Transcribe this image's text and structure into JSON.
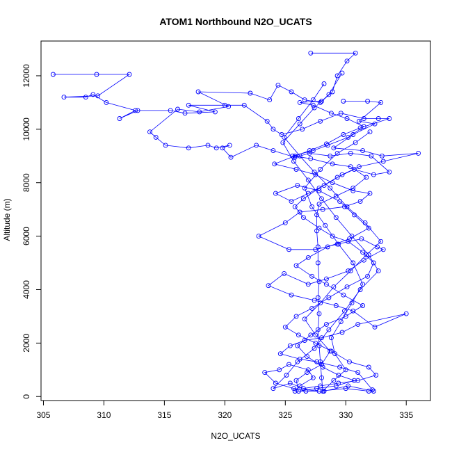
{
  "chart_data": {
    "type": "line",
    "title": "ATOM1 Northbound N2O_UCATS",
    "xlabel": "N2O_UCATS",
    "ylabel": "Altitude (m)",
    "xlim": [
      304.8,
      337.0
    ],
    "ylim": [
      -150,
      13300
    ],
    "xticks": [
      305,
      310,
      315,
      320,
      325,
      330,
      335
    ],
    "yticks": [
      0,
      2000,
      4000,
      6000,
      8000,
      10000,
      12000
    ],
    "marker": "open-circle",
    "grid": false,
    "legend": "none",
    "series": [
      {
        "color": "#0000ff",
        "points": [
          [
            305.8,
            12050
          ],
          [
            309.4,
            12050
          ],
          [
            312.1,
            12050
          ],
          [
            309.5,
            11250
          ],
          [
            306.7,
            11200
          ],
          [
            308.5,
            11200
          ],
          [
            309.1,
            11300
          ],
          [
            310.2,
            11000
          ],
          [
            312.6,
            10700
          ],
          [
            311.3,
            10400
          ],
          [
            312.8,
            10700
          ],
          [
            315.5,
            10700
          ],
          [
            316.7,
            10600
          ],
          [
            319.2,
            10650
          ],
          [
            317.0,
            10900
          ],
          [
            320.0,
            10900
          ],
          [
            321.6,
            10900
          ],
          [
            323.5,
            10300
          ],
          [
            324.0,
            10000
          ],
          [
            324.7,
            9800
          ],
          [
            326.4,
            10000
          ],
          [
            327.9,
            10300
          ],
          [
            329.6,
            10600
          ],
          [
            331.5,
            10400
          ],
          [
            332.7,
            10400
          ],
          [
            333.6,
            10400
          ],
          [
            331.2,
            10050
          ],
          [
            329.8,
            9800
          ],
          [
            328.4,
            9450
          ],
          [
            327.0,
            9200
          ],
          [
            325.8,
            9000
          ],
          [
            324.1,
            8700
          ],
          [
            325.9,
            8500
          ],
          [
            327.5,
            8300
          ],
          [
            328.9,
            8000
          ],
          [
            330.6,
            7700
          ],
          [
            332.0,
            7600
          ],
          [
            331.2,
            7300
          ],
          [
            329.9,
            7100
          ],
          [
            328.1,
            7000
          ],
          [
            326.2,
            6900
          ],
          [
            325.0,
            6500
          ],
          [
            322.8,
            6000
          ],
          [
            325.3,
            5500
          ],
          [
            327.5,
            5500
          ],
          [
            329.3,
            5700
          ],
          [
            331.3,
            5900
          ],
          [
            332.6,
            5600
          ],
          [
            333.1,
            5500
          ],
          [
            331.5,
            5100
          ],
          [
            330.2,
            4700
          ],
          [
            328.4,
            4400
          ],
          [
            326.9,
            4200
          ],
          [
            324.9,
            4600
          ],
          [
            323.6,
            4150
          ],
          [
            325.5,
            3800
          ],
          [
            327.4,
            3600
          ],
          [
            329.2,
            3400
          ],
          [
            330.6,
            3200
          ],
          [
            332.4,
            2600
          ],
          [
            335.0,
            3100
          ],
          [
            331.0,
            2700
          ],
          [
            329.7,
            2400
          ],
          [
            328.0,
            2200
          ],
          [
            326.6,
            2100
          ],
          [
            325.4,
            1900
          ],
          [
            324.6,
            1600
          ],
          [
            326.2,
            1400
          ],
          [
            327.6,
            1300
          ],
          [
            329.5,
            1100
          ],
          [
            331.0,
            900
          ],
          [
            332.3,
            200
          ],
          [
            330.2,
            400
          ],
          [
            328.2,
            200
          ],
          [
            326.7,
            200
          ],
          [
            325.8,
            200
          ],
          [
            326.2,
            400
          ],
          [
            327.3,
            700
          ],
          [
            326.9,
            1000
          ],
          [
            325.3,
            1200
          ],
          [
            324.5,
            1000
          ],
          [
            323.3,
            900
          ],
          [
            324.2,
            500
          ],
          [
            325.7,
            300
          ],
          [
            327.8,
            200
          ],
          [
            330.0,
            300
          ],
          [
            331.9,
            200
          ],
          [
            332.2,
            250
          ]
        ]
      },
      {
        "color": "#0000ff",
        "points": [
          [
            327.1,
            12850
          ],
          [
            330.8,
            12850
          ],
          [
            330.1,
            12550
          ],
          [
            329.3,
            12000
          ],
          [
            328.9,
            11400
          ],
          [
            327.9,
            11000
          ],
          [
            326.6,
            11100
          ],
          [
            325.5,
            11400
          ],
          [
            324.4,
            11650
          ],
          [
            323.7,
            11100
          ],
          [
            322.1,
            11350
          ],
          [
            317.8,
            11400
          ],
          [
            320.3,
            10850
          ],
          [
            317.9,
            10650
          ],
          [
            316.1,
            10750
          ],
          [
            313.8,
            9900
          ],
          [
            314.3,
            9700
          ],
          [
            315.1,
            9400
          ],
          [
            317.0,
            9300
          ],
          [
            318.6,
            9400
          ],
          [
            319.3,
            9300
          ],
          [
            320.4,
            9400
          ],
          [
            319.8,
            9300
          ],
          [
            320.5,
            8950
          ],
          [
            322.6,
            9400
          ],
          [
            324.0,
            9200
          ],
          [
            325.8,
            8950
          ],
          [
            327.0,
            9100
          ],
          [
            328.7,
            9000
          ],
          [
            330.4,
            9100
          ],
          [
            332.1,
            9000
          ],
          [
            333.6,
            8400
          ],
          [
            332.3,
            8300
          ],
          [
            330.7,
            8500
          ],
          [
            329.3,
            8200
          ],
          [
            327.8,
            7800
          ],
          [
            326.5,
            7400
          ],
          [
            325.8,
            7100
          ],
          [
            326.5,
            6700
          ],
          [
            327.8,
            6300
          ],
          [
            328.9,
            6000
          ],
          [
            330.2,
            5800
          ],
          [
            331.4,
            5400
          ],
          [
            332.3,
            5000
          ],
          [
            331.8,
            4500
          ],
          [
            330.1,
            4100
          ],
          [
            328.6,
            3700
          ],
          [
            327.2,
            3300
          ],
          [
            325.9,
            3000
          ],
          [
            325.0,
            2600
          ],
          [
            326.1,
            2300
          ],
          [
            327.5,
            2000
          ],
          [
            328.8,
            1700
          ],
          [
            330.3,
            1300
          ],
          [
            331.9,
            1100
          ],
          [
            332.5,
            800
          ],
          [
            331.0,
            600
          ],
          [
            329.4,
            500
          ],
          [
            327.9,
            400
          ],
          [
            326.5,
            300
          ],
          [
            325.4,
            500
          ],
          [
            324.0,
            300
          ],
          [
            325.1,
            800
          ],
          [
            326.0,
            1300
          ],
          [
            327.4,
            1800
          ],
          [
            328.6,
            2500
          ],
          [
            329.9,
            3200
          ],
          [
            331.2,
            4000
          ],
          [
            332.7,
            4700
          ],
          [
            331.9,
            5300
          ],
          [
            330.5,
            6000
          ],
          [
            329.2,
            6700
          ],
          [
            328.0,
            7400
          ],
          [
            326.9,
            8100
          ],
          [
            325.7,
            8800
          ],
          [
            324.8,
            9500
          ],
          [
            326.2,
            10200
          ],
          [
            327.4,
            10800
          ],
          [
            328.6,
            11300
          ],
          [
            329.7,
            12100
          ]
        ]
      },
      {
        "color": "#0000ff",
        "points": [
          [
            329.8,
            11050
          ],
          [
            331.8,
            11050
          ],
          [
            332.9,
            11000
          ],
          [
            331.1,
            10300
          ],
          [
            332.4,
            10200
          ],
          [
            330.6,
            9800
          ],
          [
            329.0,
            9300
          ],
          [
            331.4,
            9200
          ],
          [
            333.0,
            9000
          ],
          [
            336.0,
            9100
          ],
          [
            333.1,
            8800
          ],
          [
            331.1,
            8600
          ],
          [
            329.7,
            8300
          ],
          [
            328.2,
            7900
          ],
          [
            326.9,
            7600
          ],
          [
            325.5,
            7300
          ],
          [
            324.2,
            7600
          ],
          [
            326.0,
            7900
          ],
          [
            327.8,
            7700
          ],
          [
            329.5,
            7300
          ],
          [
            330.7,
            6800
          ],
          [
            331.9,
            6300
          ],
          [
            330.3,
            5900
          ],
          [
            328.5,
            5600
          ],
          [
            326.9,
            5200
          ],
          [
            325.9,
            4900
          ],
          [
            327.2,
            4500
          ],
          [
            328.4,
            4200
          ],
          [
            329.8,
            3800
          ],
          [
            331.4,
            3400
          ],
          [
            330.0,
            3000
          ],
          [
            328.4,
            2700
          ],
          [
            327.1,
            2300
          ],
          [
            326.0,
            1900
          ],
          [
            326.8,
            1500
          ],
          [
            328.1,
            1100
          ],
          [
            329.4,
            800
          ],
          [
            330.7,
            600
          ],
          [
            329.2,
            400
          ],
          [
            327.6,
            300
          ],
          [
            326.1,
            200
          ],
          [
            325.9,
            600
          ],
          [
            326.8,
            900
          ],
          [
            328.0,
            1200
          ],
          [
            328.7,
            1700
          ],
          [
            327.5,
            2300
          ],
          [
            326.6,
            2900
          ],
          [
            327.9,
            3500
          ],
          [
            329.0,
            4100
          ],
          [
            330.4,
            4700
          ],
          [
            331.7,
            5300
          ],
          [
            332.9,
            5800
          ],
          [
            331.6,
            6500
          ],
          [
            330.1,
            7100
          ],
          [
            328.7,
            7800
          ],
          [
            327.4,
            8400
          ],
          [
            326.2,
            9000
          ],
          [
            324.9,
            9700
          ],
          [
            326.1,
            10400
          ],
          [
            327.3,
            11100
          ],
          [
            328.2,
            11700
          ]
        ]
      },
      {
        "color": "#0000ff",
        "points": [
          [
            328.0,
            11050
          ],
          [
            326.2,
            11000
          ],
          [
            327.3,
            10900
          ],
          [
            328.8,
            10600
          ],
          [
            330.1,
            10400
          ],
          [
            331.5,
            10100
          ],
          [
            330.2,
            9700
          ],
          [
            328.5,
            9400
          ],
          [
            327.3,
            9200
          ],
          [
            325.6,
            9000
          ],
          [
            327.1,
            8900
          ],
          [
            328.9,
            8700
          ],
          [
            330.4,
            8600
          ],
          [
            331.7,
            8200
          ],
          [
            330.6,
            7800
          ],
          [
            329.2,
            7500
          ],
          [
            327.8,
            7200
          ],
          [
            327.6,
            6800
          ],
          [
            327.6,
            6200
          ],
          [
            327.7,
            5600
          ],
          [
            327.7,
            5000
          ],
          [
            327.8,
            4300
          ],
          [
            327.7,
            3700
          ],
          [
            327.8,
            3100
          ],
          [
            327.7,
            2500
          ],
          [
            327.8,
            1900
          ],
          [
            327.9,
            1300
          ],
          [
            328.0,
            700
          ],
          [
            328.1,
            200
          ],
          [
            329.0,
            600
          ],
          [
            330.0,
            1000
          ],
          [
            329.1,
            1600
          ],
          [
            328.8,
            2200
          ],
          [
            329.6,
            2800
          ],
          [
            330.5,
            3500
          ],
          [
            331.4,
            4200
          ],
          [
            330.6,
            5000
          ],
          [
            329.4,
            5700
          ],
          [
            328.3,
            6400
          ],
          [
            327.2,
            7100
          ],
          [
            326.6,
            7800
          ],
          [
            327.9,
            8500
          ],
          [
            329.3,
            9100
          ],
          [
            330.8,
            9500
          ],
          [
            332.0,
            9900
          ]
        ]
      }
    ]
  }
}
